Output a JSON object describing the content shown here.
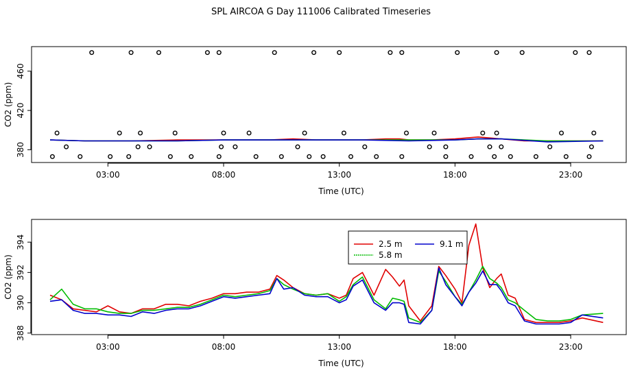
{
  "title": "SPL AIRCOA G  Day 111006  Calibrated Timeseries",
  "colors": {
    "red": "#e00000",
    "green": "#00bb00",
    "blue": "#0000cc",
    "axis": "#000000"
  },
  "chart_data": [
    {
      "type": "scatter+line",
      "title": "",
      "xlabel": "Time (UTC)",
      "ylabel": "CO2 (ppm)",
      "xlim": [
        -0.3,
        25.4
      ],
      "ylim": [
        367,
        485
      ],
      "xticks": [
        3,
        8,
        13,
        18,
        23
      ],
      "xtick_labels": [
        "03:00",
        "08:00",
        "13:00",
        "18:00",
        "23:00"
      ],
      "yticks": [
        380,
        420,
        460
      ],
      "ytick_labels": [
        "380",
        "420",
        "460"
      ],
      "series": [
        {
          "name": "2.5 m",
          "color": "#e00000",
          "x": [
            0.5,
            2,
            4,
            6,
            8,
            10,
            11,
            12,
            13,
            14,
            15,
            15.6,
            16,
            17,
            18,
            18.5,
            19,
            19.5,
            20,
            21,
            22,
            23,
            24.4
          ],
          "y": [
            390,
            389,
            389,
            390,
            390,
            390,
            391,
            390,
            390,
            390,
            391,
            391,
            390,
            390,
            391,
            392,
            393,
            392,
            391,
            389,
            389,
            389,
            389
          ]
        },
        {
          "name": "5.8 m",
          "color": "#00bb00",
          "x": [
            0.5,
            2,
            4,
            6,
            8,
            10,
            12,
            13,
            14,
            16,
            18,
            19,
            20,
            22,
            24.4
          ],
          "y": [
            390,
            389,
            389,
            389,
            390,
            390,
            390,
            390,
            390,
            390,
            390,
            391,
            391,
            389,
            389
          ]
        },
        {
          "name": "9.1 m",
          "color": "#0000cc",
          "x": [
            0.5,
            2,
            4,
            6,
            8,
            10,
            12,
            13,
            14,
            16,
            18,
            19,
            20,
            22,
            24.4
          ],
          "y": [
            390,
            389,
            389,
            389,
            390,
            390,
            390,
            390,
            390,
            389,
            390,
            391,
            391,
            388,
            389
          ]
        }
      ],
      "markers": {
        "x": [
          2.3,
          4,
          5.2,
          7.3,
          7.8,
          10.2,
          11.9,
          13,
          15.2,
          15.7,
          18.1,
          19.8,
          20.9,
          23.2,
          23.8,
          0.6,
          1.8,
          3.1,
          3.9,
          5.7,
          6.6,
          7.8,
          9.4,
          10.5,
          11.7,
          12.3,
          13.5,
          14.6,
          15.7,
          17.6,
          18.7,
          19.7,
          20.4,
          21.5,
          22.8,
          23.8,
          1.2,
          4.3,
          4.8,
          7.9,
          8.5,
          11.2,
          14.1,
          16.9,
          17.6,
          19.5,
          20.0,
          22.1,
          23.9,
          0.8,
          3.5,
          4.4,
          5.9,
          8.0,
          9.1,
          11.5,
          13.2,
          15.9,
          17.1,
          19.2,
          19.8,
          22.6,
          24.0
        ],
        "y": [
          479,
          479,
          479,
          479,
          479,
          479,
          479,
          479,
          479,
          479,
          479,
          479,
          479,
          479,
          479,
          373,
          373,
          373,
          373,
          373,
          373,
          373,
          373,
          373,
          373,
          373,
          373,
          373,
          373,
          373,
          373,
          373,
          373,
          373,
          373,
          373,
          383,
          383,
          383,
          383,
          383,
          383,
          383,
          383,
          383,
          383,
          383,
          383,
          383,
          397,
          397,
          397,
          397,
          397,
          397,
          397,
          397,
          397,
          397,
          397,
          397,
          397,
          397
        ]
      }
    },
    {
      "type": "line",
      "title": "",
      "xlabel": "Time (UTC)",
      "ylabel": "CO2 (ppm)",
      "xlim": [
        -0.3,
        25.4
      ],
      "ylim": [
        387.9,
        395.5
      ],
      "xticks": [
        3,
        8,
        13,
        18,
        23
      ],
      "xtick_labels": [
        "03:00",
        "08:00",
        "13:00",
        "18:00",
        "23:00"
      ],
      "yticks": [
        388,
        390,
        392,
        394
      ],
      "ytick_labels": [
        "388",
        "390",
        "392",
        "394"
      ],
      "legend": {
        "position": "top-center",
        "entries": [
          "2.5 m",
          "5.8 m",
          "9.1 m"
        ]
      },
      "series": [
        {
          "name": "2.5 m",
          "color": "#e00000",
          "x": [
            0.5,
            1,
            1.5,
            2,
            2.5,
            3,
            3.5,
            4,
            4.5,
            5,
            5.5,
            6,
            6.5,
            7,
            7.5,
            8,
            8.5,
            9,
            9.5,
            10,
            10.3,
            10.6,
            11,
            11.5,
            12,
            12.5,
            13,
            13.3,
            13.6,
            14,
            14.5,
            15,
            15.3,
            15.6,
            15.8,
            16,
            16.5,
            17,
            17.3,
            17.6,
            18,
            18.3,
            18.6,
            18.9,
            19.2,
            19.5,
            19.8,
            20,
            20.3,
            20.6,
            21,
            21.5,
            22,
            22.5,
            23,
            23.5,
            24.4
          ],
          "y": [
            390.5,
            390.2,
            389.6,
            389.5,
            389.4,
            389.8,
            389.4,
            389.3,
            389.6,
            389.6,
            389.9,
            389.9,
            389.8,
            390.1,
            390.3,
            390.6,
            390.6,
            390.7,
            390.7,
            390.9,
            391.8,
            391.5,
            391.0,
            390.6,
            390.5,
            390.6,
            390.3,
            390.5,
            391.6,
            392.0,
            390.5,
            392.2,
            391.7,
            391.1,
            391.5,
            389.8,
            388.8,
            389.8,
            392.4,
            391.8,
            390.9,
            390.0,
            393.8,
            395.2,
            392.3,
            391.0,
            391.6,
            391.9,
            390.5,
            390.3,
            388.9,
            388.7,
            388.7,
            388.7,
            388.8,
            389.0,
            388.7
          ]
        },
        {
          "name": "5.8 m",
          "color": "#00bb00",
          "x": [
            0.5,
            1,
            1.5,
            2,
            2.5,
            3,
            3.5,
            4,
            4.5,
            5,
            5.5,
            6,
            6.5,
            7,
            7.5,
            8,
            8.5,
            9,
            9.5,
            10,
            10.3,
            10.6,
            11,
            11.5,
            12,
            12.5,
            13,
            13.3,
            13.6,
            14,
            14.5,
            15,
            15.3,
            15.6,
            15.8,
            16,
            16.5,
            17,
            17.3,
            17.6,
            18,
            18.3,
            18.6,
            18.9,
            19.2,
            19.5,
            19.8,
            20,
            20.3,
            20.6,
            21,
            21.5,
            22,
            22.5,
            23,
            23.5,
            24.4
          ],
          "y": [
            390.2,
            390.9,
            389.9,
            389.6,
            389.6,
            389.4,
            389.3,
            389.3,
            389.5,
            389.5,
            389.6,
            389.7,
            389.7,
            389.9,
            390.2,
            390.5,
            390.4,
            390.5,
            390.6,
            390.8,
            391.6,
            391.2,
            390.9,
            390.6,
            390.5,
            390.6,
            390.1,
            390.4,
            391.2,
            391.7,
            390.2,
            389.6,
            390.3,
            390.2,
            390.1,
            389.0,
            388.7,
            389.5,
            392.1,
            391.4,
            390.4,
            389.9,
            390.7,
            391.5,
            392.4,
            391.6,
            391.3,
            391.0,
            390.2,
            390.0,
            389.5,
            388.9,
            388.8,
            388.8,
            388.9,
            389.2,
            389.3
          ]
        },
        {
          "name": "9.1 m",
          "color": "#0000cc",
          "x": [
            0.5,
            1,
            1.5,
            2,
            2.5,
            3,
            3.5,
            4,
            4.5,
            5,
            5.5,
            6,
            6.5,
            7,
            7.5,
            8,
            8.5,
            9,
            9.5,
            10,
            10.3,
            10.6,
            11,
            11.5,
            12,
            12.5,
            13,
            13.3,
            13.6,
            14,
            14.5,
            15,
            15.3,
            15.6,
            15.8,
            16,
            16.5,
            17,
            17.3,
            17.6,
            18,
            18.3,
            18.6,
            18.9,
            19.2,
            19.5,
            19.8,
            20,
            20.3,
            20.6,
            21,
            21.5,
            22,
            22.5,
            23,
            23.5,
            24.4
          ],
          "y": [
            390.1,
            390.2,
            389.5,
            389.3,
            389.3,
            389.2,
            389.2,
            389.1,
            389.4,
            389.3,
            389.5,
            389.6,
            389.6,
            389.8,
            390.1,
            390.4,
            390.3,
            390.4,
            390.5,
            390.6,
            391.6,
            390.9,
            391.0,
            390.5,
            390.4,
            390.4,
            390.0,
            390.2,
            391.1,
            391.5,
            390.0,
            389.5,
            390.0,
            390.0,
            389.9,
            388.7,
            388.6,
            389.5,
            392.3,
            391.2,
            390.4,
            389.8,
            390.7,
            391.3,
            392.1,
            391.2,
            391.2,
            390.8,
            390.0,
            389.8,
            388.8,
            388.6,
            388.6,
            388.6,
            388.7,
            389.2,
            389.0
          ]
        }
      ]
    }
  ]
}
